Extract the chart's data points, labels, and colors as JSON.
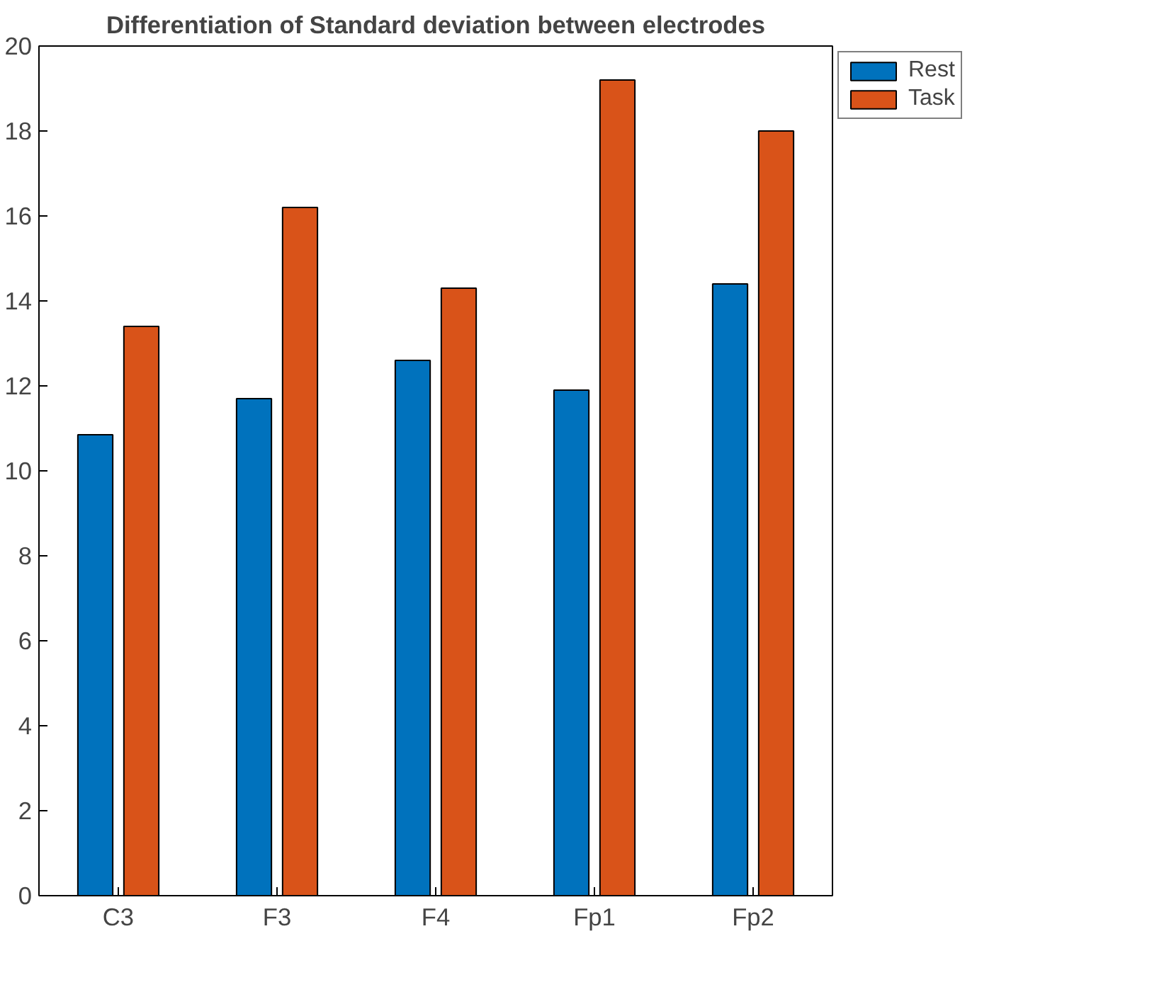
{
  "chart_data": {
    "type": "bar",
    "title": "Differentiation of Standard deviation between electrodes",
    "categories": [
      "C3",
      "F3",
      "F4",
      "Fp1",
      "Fp2"
    ],
    "series": [
      {
        "name": "Rest",
        "color": "#0072bd",
        "values": [
          10.85,
          11.7,
          12.6,
          11.9,
          14.4
        ]
      },
      {
        "name": "Task",
        "color": "#d95319",
        "values": [
          13.4,
          16.2,
          14.3,
          19.2,
          18
        ]
      }
    ],
    "ylim": [
      0,
      20
    ],
    "yticks": [
      0,
      2,
      4,
      6,
      8,
      10,
      12,
      14,
      16,
      18,
      20
    ],
    "grid": false,
    "legend": "top right"
  }
}
